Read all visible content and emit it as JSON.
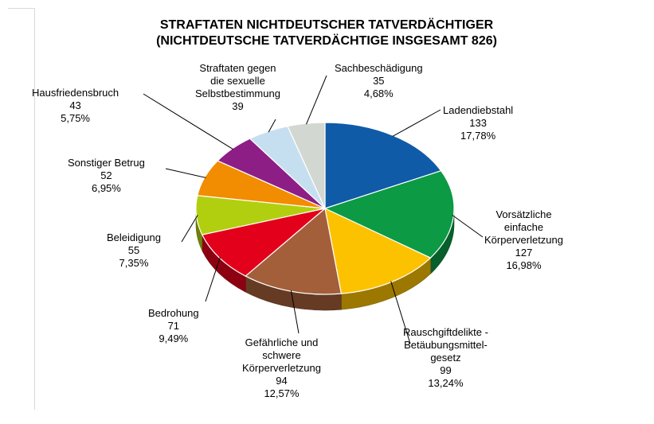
{
  "chart_data": {
    "type": "pie",
    "title": "STRAFTATEN NICHTDEUTSCHER TATVERDÄCHTIGER",
    "subtitle": "(NICHTDEUTSCHE TATVERDÄCHTIGE INSGESAMT 826)",
    "total": 826,
    "slices": [
      {
        "label_lines": [
          "Ladendiebstahl"
        ],
        "value": 133,
        "percent": "17,78%",
        "color": "#0f5ba8"
      },
      {
        "label_lines": [
          "Vorsätzliche",
          "einfache",
          "Körperverletzung"
        ],
        "value": 127,
        "percent": "16,98%",
        "color": "#0c9a45"
      },
      {
        "label_lines": [
          "Rauschgiftdelikte -",
          "Betäubungsmittel-",
          "gesetz"
        ],
        "value": 99,
        "percent": "13,24%",
        "color": "#fcc200"
      },
      {
        "label_lines": [
          "Gefährliche und",
          "schwere",
          "Körperverletzung"
        ],
        "value": 94,
        "percent": "12,57%",
        "color": "#a35f3a"
      },
      {
        "label_lines": [
          "Bedrohung"
        ],
        "value": 71,
        "percent": "9,49%",
        "color": "#e3001b"
      },
      {
        "label_lines": [
          "Beleidigung"
        ],
        "value": 55,
        "percent": "7,35%",
        "color": "#b2cf0f"
      },
      {
        "label_lines": [
          "Sonstiger Betrug"
        ],
        "value": 52,
        "percent": "6,95%",
        "color": "#f28c00"
      },
      {
        "label_lines": [
          "Hausfriedensbruch"
        ],
        "value": 43,
        "percent": "5,75%",
        "color": "#8c1e86"
      },
      {
        "label_lines": [
          "Straftaten gegen",
          "die sexuelle",
          "Selbstbestimmung"
        ],
        "value": 39,
        "percent": "",
        "color": "#c6dff0"
      },
      {
        "label_lines": [
          "Sachbeschädigung"
        ],
        "value": 35,
        "percent": "4,68%",
        "color": "#d2d7d2"
      }
    ]
  }
}
